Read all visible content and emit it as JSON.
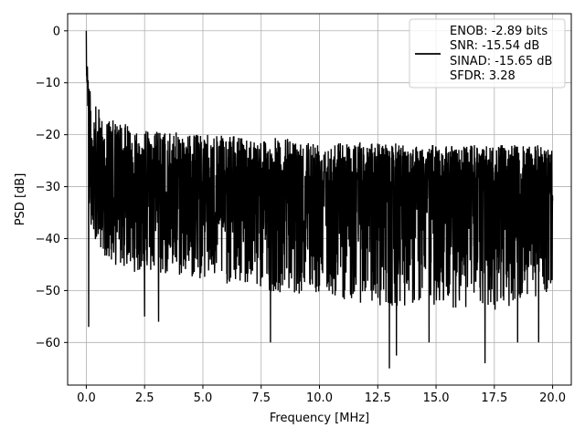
{
  "chart_data": {
    "type": "line",
    "xlabel": "Frequency [MHz]",
    "ylabel": "PSD [dB]",
    "xlim": [
      -0.8,
      20.8
    ],
    "ylim": [
      -68.2,
      3.3
    ],
    "xticks": [
      0.0,
      2.5,
      5.0,
      7.5,
      10.0,
      12.5,
      15.0,
      17.5,
      20.0
    ],
    "xtick_labels": [
      "0.0",
      "2.5",
      "5.0",
      "7.5",
      "10.0",
      "12.5",
      "15.0",
      "17.5",
      "20.0"
    ],
    "yticks": [
      0,
      -10,
      -20,
      -30,
      -40,
      -50,
      -60
    ],
    "ytick_labels": [
      "0",
      "−10",
      "−20",
      "−30",
      "−40",
      "−50",
      "−60"
    ],
    "grid": true,
    "legend_position": "top-right",
    "legend_entries": [
      "ENOB: -2.89 bits",
      "SNR: -15.54 dB",
      "SINAD: -15.65 dB",
      "SFDR: 3.28"
    ],
    "series": [
      {
        "color": "#000000",
        "x_range": [
          0.0,
          20.0
        ],
        "peak": {
          "x": 0.0,
          "y": 0.0
        },
        "upper_envelope": [
          [
            0.0,
            0.0
          ],
          [
            0.02,
            -4
          ],
          [
            0.1,
            -10
          ],
          [
            0.3,
            -14
          ],
          [
            1.0,
            -17
          ],
          [
            2.5,
            -19
          ],
          [
            5.0,
            -20
          ],
          [
            7.5,
            -20.5
          ],
          [
            10.0,
            -21
          ],
          [
            12.5,
            -21.5
          ],
          [
            15.0,
            -22
          ],
          [
            17.5,
            -22
          ],
          [
            20.0,
            -22
          ]
        ],
        "typical_floor": -30,
        "lower_envelope": [
          [
            0.0,
            -37
          ],
          [
            1.0,
            -45
          ],
          [
            2.5,
            -47
          ],
          [
            5.0,
            -48
          ],
          [
            7.5,
            -50
          ],
          [
            10.0,
            -51
          ],
          [
            12.5,
            -53
          ],
          [
            15.0,
            -53
          ],
          [
            17.5,
            -54
          ],
          [
            20.0,
            -50
          ]
        ],
        "notable_minima": [
          [
            0.1,
            -57
          ],
          [
            2.5,
            -55
          ],
          [
            3.1,
            -56
          ],
          [
            7.9,
            -60
          ],
          [
            13.0,
            -65
          ],
          [
            13.3,
            -62.5
          ],
          [
            14.7,
            -60
          ],
          [
            17.1,
            -64
          ],
          [
            18.5,
            -60
          ],
          [
            19.4,
            -60
          ]
        ]
      }
    ]
  }
}
